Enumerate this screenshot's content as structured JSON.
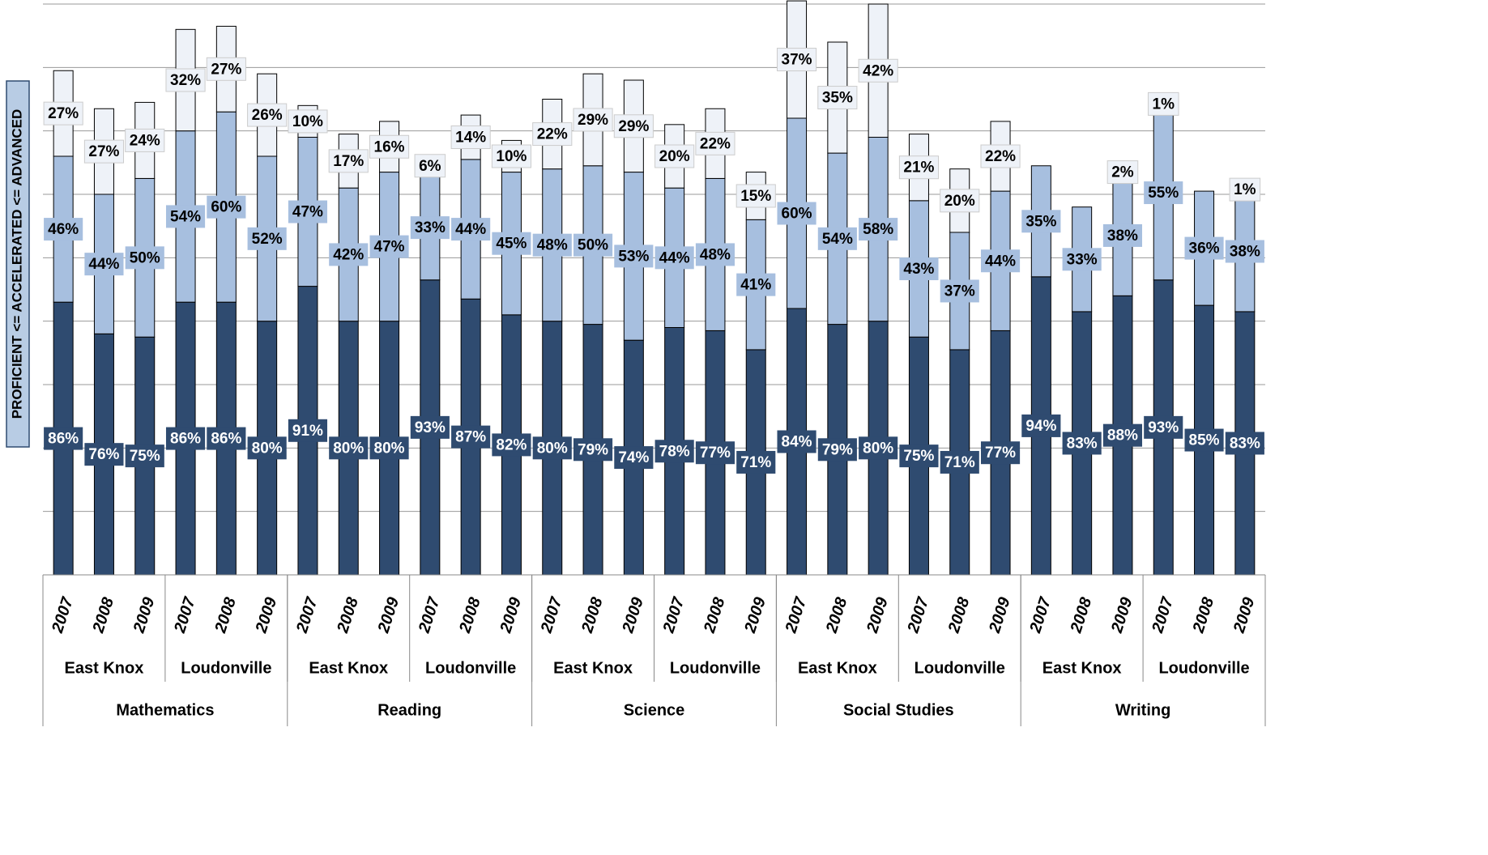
{
  "chart_data": {
    "type": "stacked-bar",
    "y_label": "PROFICIENT <= ACCELERATED <= ADVANCED",
    "categories": [
      "2007",
      "2008",
      "2009",
      "2007",
      "2008",
      "2009",
      "2007",
      "2008",
      "2009",
      "2007",
      "2008",
      "2009",
      "2007",
      "2008",
      "2009",
      "2007",
      "2008",
      "2009",
      "2007",
      "2008",
      "2009",
      "2007",
      "2008",
      "2009",
      "2007",
      "2008",
      "2009",
      "2007",
      "2008",
      "2009"
    ],
    "school_labels": [
      "East Knox",
      "Loudonville",
      "East Knox",
      "Loudonville",
      "East Knox",
      "Loudonville",
      "East Knox",
      "Loudonville",
      "East Knox",
      "Loudonville"
    ],
    "subject_labels": [
      "Mathematics",
      "Reading",
      "Science",
      "Social Studies",
      "Writing"
    ],
    "series": [
      {
        "color": "#2f4b70",
        "values": [
          86,
          76,
          75,
          86,
          86,
          80,
          91,
          80,
          80,
          93,
          87,
          82,
          80,
          79,
          74,
          78,
          77,
          71,
          84,
          79,
          80,
          75,
          71,
          77,
          94,
          83,
          88,
          93,
          85,
          83
        ],
        "value_labels": [
          "86%",
          "76%",
          "75%",
          "86%",
          "86%",
          "80%",
          "91%",
          "80%",
          "80%",
          "93%",
          "87%",
          "82%",
          "80%",
          "79%",
          "74%",
          "78%",
          "77%",
          "71%",
          "84%",
          "79%",
          "80%",
          "75%",
          "71%",
          "77%",
          "94%",
          "83%",
          "88%",
          "93%",
          "85%",
          "83%"
        ]
      },
      {
        "color": "#a7bfdf",
        "values": [
          46,
          44,
          50,
          54,
          60,
          52,
          47,
          42,
          47,
          33,
          44,
          45,
          48,
          50,
          53,
          44,
          48,
          41,
          60,
          54,
          58,
          43,
          37,
          44,
          35,
          33,
          38,
          55,
          36,
          38
        ],
        "value_labels": [
          "46%",
          "44%",
          "50%",
          "54%",
          "60%",
          "52%",
          "47%",
          "42%",
          "47%",
          "33%",
          "44%",
          "45%",
          "48%",
          "50%",
          "53%",
          "44%",
          "48%",
          "41%",
          "60%",
          "54%",
          "58%",
          "43%",
          "37%",
          "44%",
          "35%",
          "33%",
          "38%",
          "55%",
          "36%",
          "38%"
        ]
      },
      {
        "color": "#eef2f8",
        "values": [
          27,
          27,
          24,
          32,
          27,
          26,
          10,
          17,
          16,
          6,
          14,
          10,
          22,
          29,
          29,
          20,
          22,
          15,
          37,
          35,
          42,
          21,
          20,
          22,
          null,
          null,
          2,
          1,
          null,
          1
        ],
        "value_labels": [
          "27%",
          "27%",
          "24%",
          "32%",
          "27%",
          "26%",
          "10%",
          "17%",
          "16%",
          "6%",
          "14%",
          "10%",
          "22%",
          "29%",
          "29%",
          "20%",
          "22%",
          "15%",
          "37%",
          "35%",
          "42%",
          "21%",
          "20%",
          "22%",
          null,
          null,
          "2%",
          "1%",
          null,
          "1%"
        ]
      }
    ],
    "ylim": [
      0,
      180
    ],
    "yticks": [
      0,
      20,
      40,
      60,
      80,
      100,
      120,
      140,
      160,
      180
    ],
    "grid": true
  }
}
